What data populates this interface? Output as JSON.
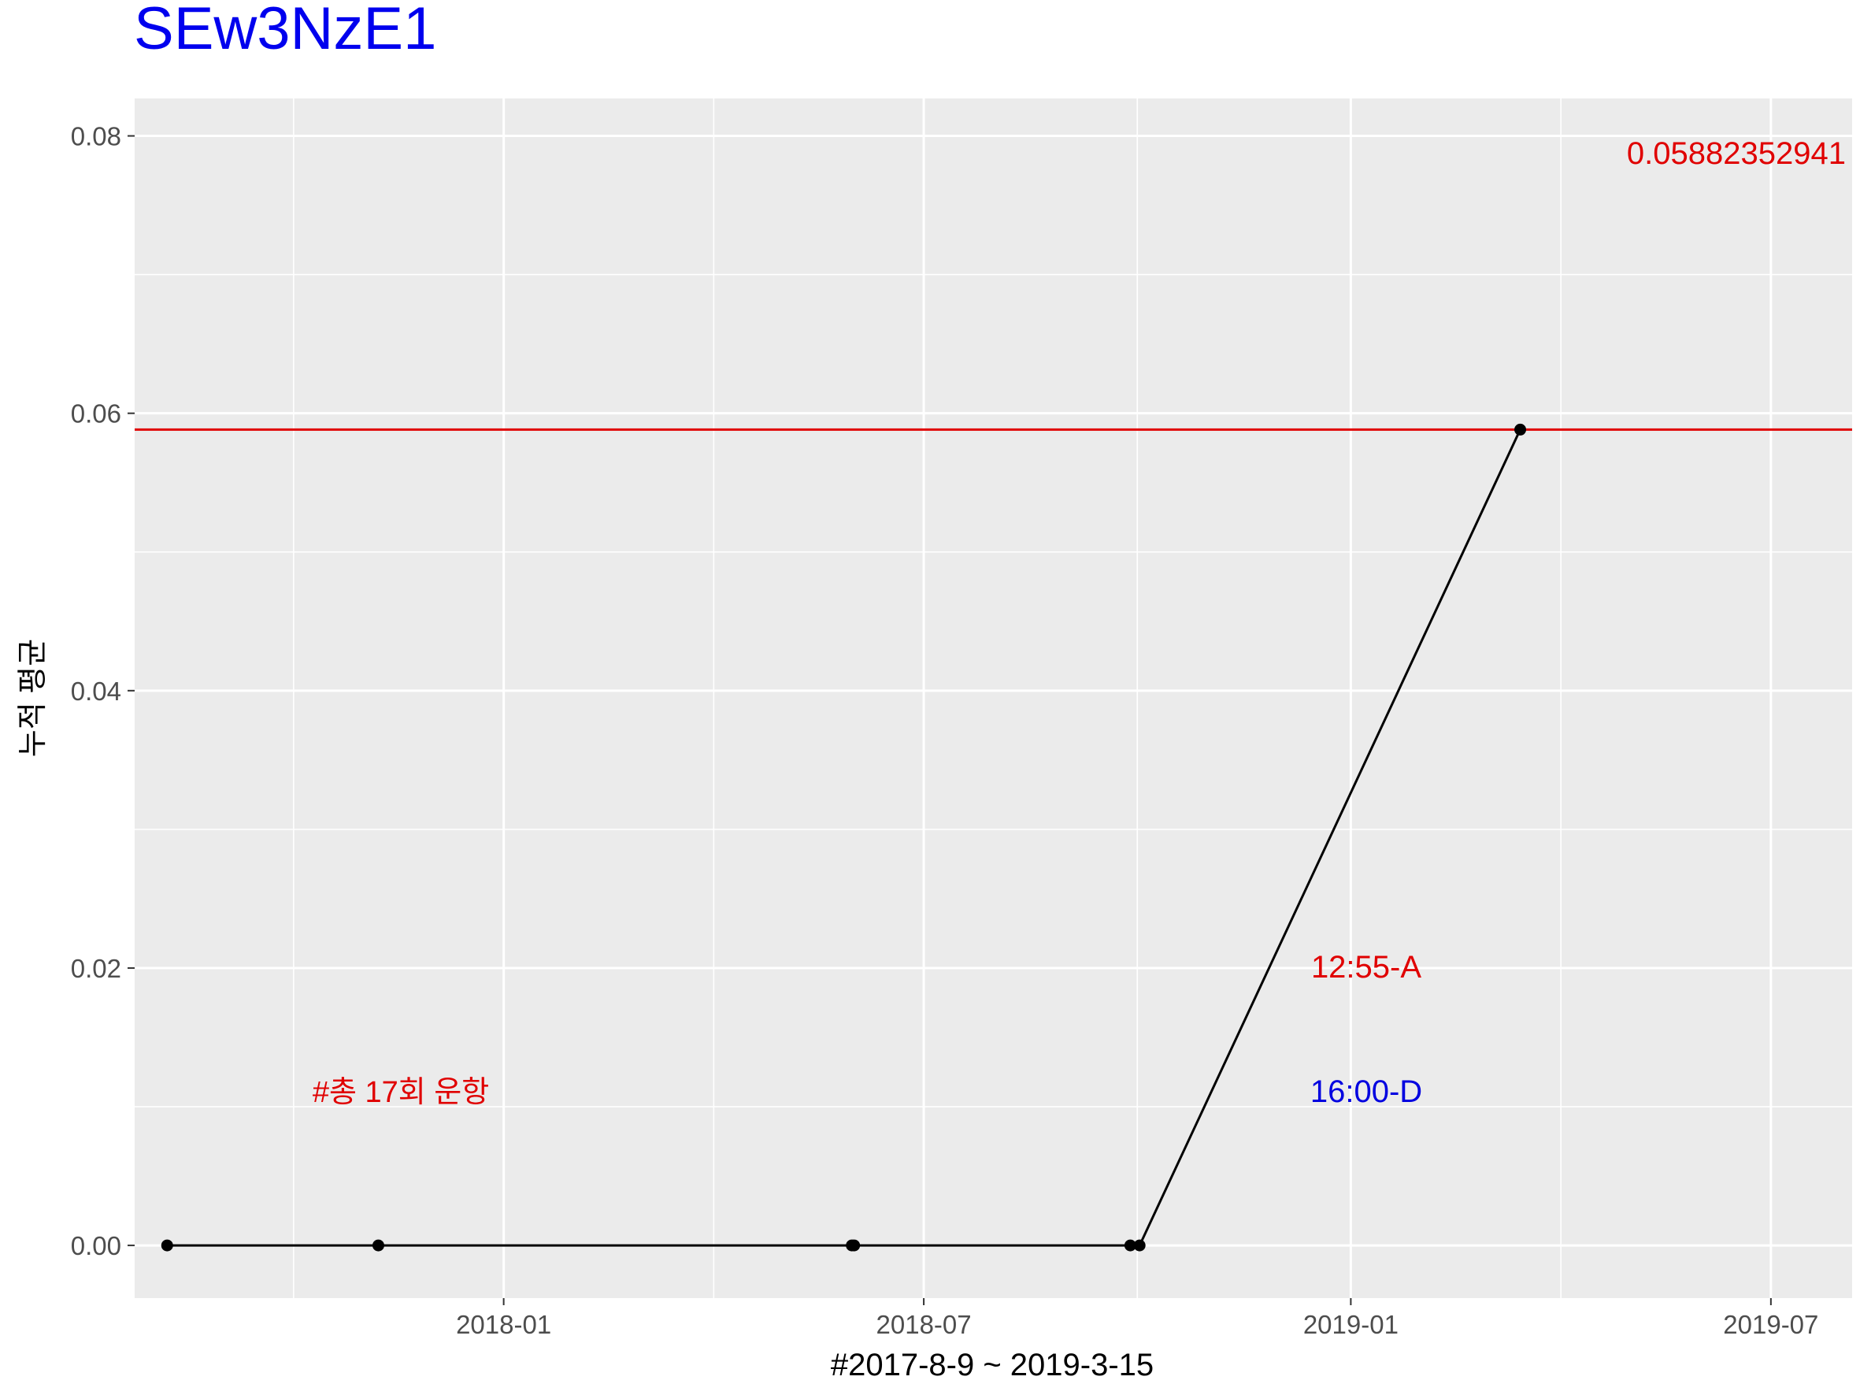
{
  "chart_data": {
    "type": "line",
    "title": "SEw3NzE1",
    "xlabel": "#2017-8-9 ~ 2019-3-15",
    "ylabel": "누적 평균",
    "x_tick_labels": [
      "2018-01",
      "2018-07",
      "2019-01",
      "2019-07"
    ],
    "y_tick_labels": [
      "0.00",
      "0.02",
      "0.04",
      "0.06",
      "0.08"
    ],
    "xlim": [
      "2017-07-26",
      "2019-08-05"
    ],
    "ylim": [
      -0.0038,
      0.0827
    ],
    "grid": true,
    "legend": "none",
    "series": [
      {
        "color": "#000000",
        "points": [
          {
            "date": "2017-08-09",
            "value": 0
          },
          {
            "date": "2017-11-08",
            "value": 0
          },
          {
            "date": "2018-05-31",
            "value": 0
          },
          {
            "date": "2018-06-01",
            "value": 0
          },
          {
            "date": "2018-09-28",
            "value": 0
          },
          {
            "date": "2018-10-02",
            "value": 0
          },
          {
            "date": "2019-03-15",
            "value": 0.0588235294
          }
        ]
      }
    ],
    "reference_line": {
      "value": 0.0588235294,
      "color": "#e00000"
    },
    "annotations": [
      {
        "text": "0.05882352941",
        "color": "#e00000"
      },
      {
        "text": "12:55-A",
        "color": "#e00000"
      },
      {
        "text": "16:00-D",
        "color": "#0000e0"
      },
      {
        "text": "#총 17회 운항",
        "color": "#e00000"
      }
    ],
    "colors": {
      "title": "#0000ee",
      "panel": "#ebebeb",
      "grid": "#ffffff",
      "axis_text": "#4d4d4d"
    }
  }
}
